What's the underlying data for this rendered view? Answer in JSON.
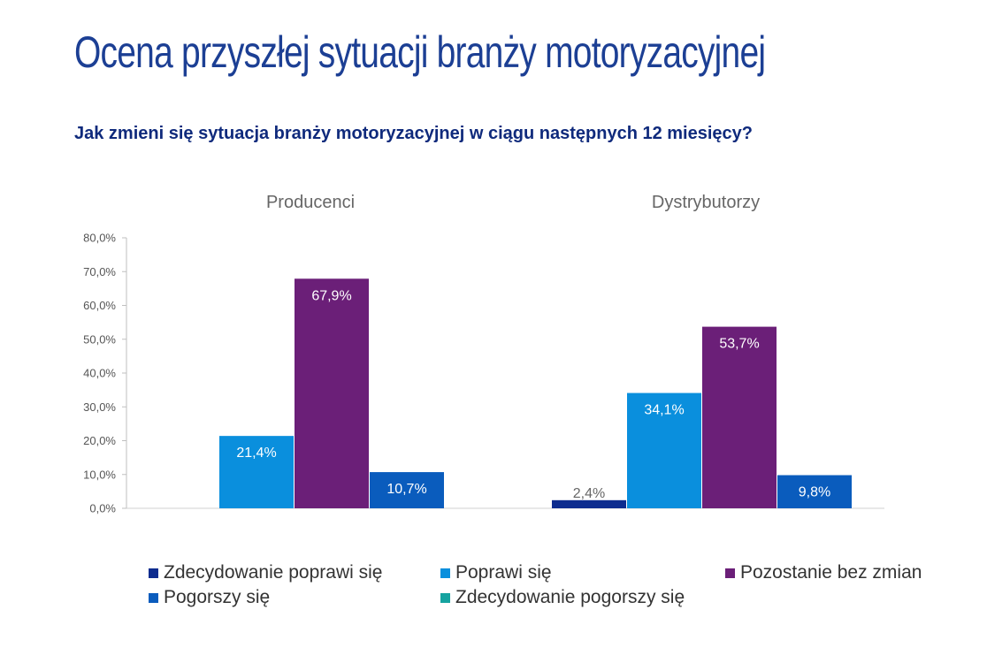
{
  "page": {
    "title": "Ocena przyszłej sytuacji branży motoryzacyjnej",
    "subtitle": "Jak zmieni się sytuacja branży motoryzacyjnej w ciągu następnych 12 miesięcy?"
  },
  "chart_data": {
    "type": "bar",
    "categories": [
      "Producenci",
      "Dystrybutorzy"
    ],
    "y_ticks": [
      "0,0%",
      "10,0%",
      "20,0%",
      "30,0%",
      "40,0%",
      "50,0%",
      "60,0%",
      "70,0%",
      "80,0%"
    ],
    "ylim": [
      0,
      80
    ],
    "grid": false,
    "legend_position": "bottom",
    "series": [
      {
        "name": "Zdecydowanie poprawi się",
        "color": "#0d2c8f",
        "values": [
          null,
          2.4
        ],
        "labels": [
          "",
          "2,4%"
        ]
      },
      {
        "name": "Poprawi się",
        "color": "#0a8fdd",
        "values": [
          21.4,
          34.1
        ],
        "labels": [
          "21,4%",
          "34,1%"
        ]
      },
      {
        "name": "Pozostanie bez zmian",
        "color": "#6b1f78",
        "values": [
          67.9,
          53.7
        ],
        "labels": [
          "67,9%",
          "53,7%"
        ]
      },
      {
        "name": "Pogorszy się",
        "color": "#0a5cbd",
        "values": [
          10.7,
          9.8
        ],
        "labels": [
          "10,7%",
          "9,8%"
        ]
      },
      {
        "name": "Zdecydowanie pogorszy się",
        "color": "#16a3a0",
        "values": [
          null,
          null
        ],
        "labels": [
          "",
          ""
        ]
      }
    ]
  }
}
